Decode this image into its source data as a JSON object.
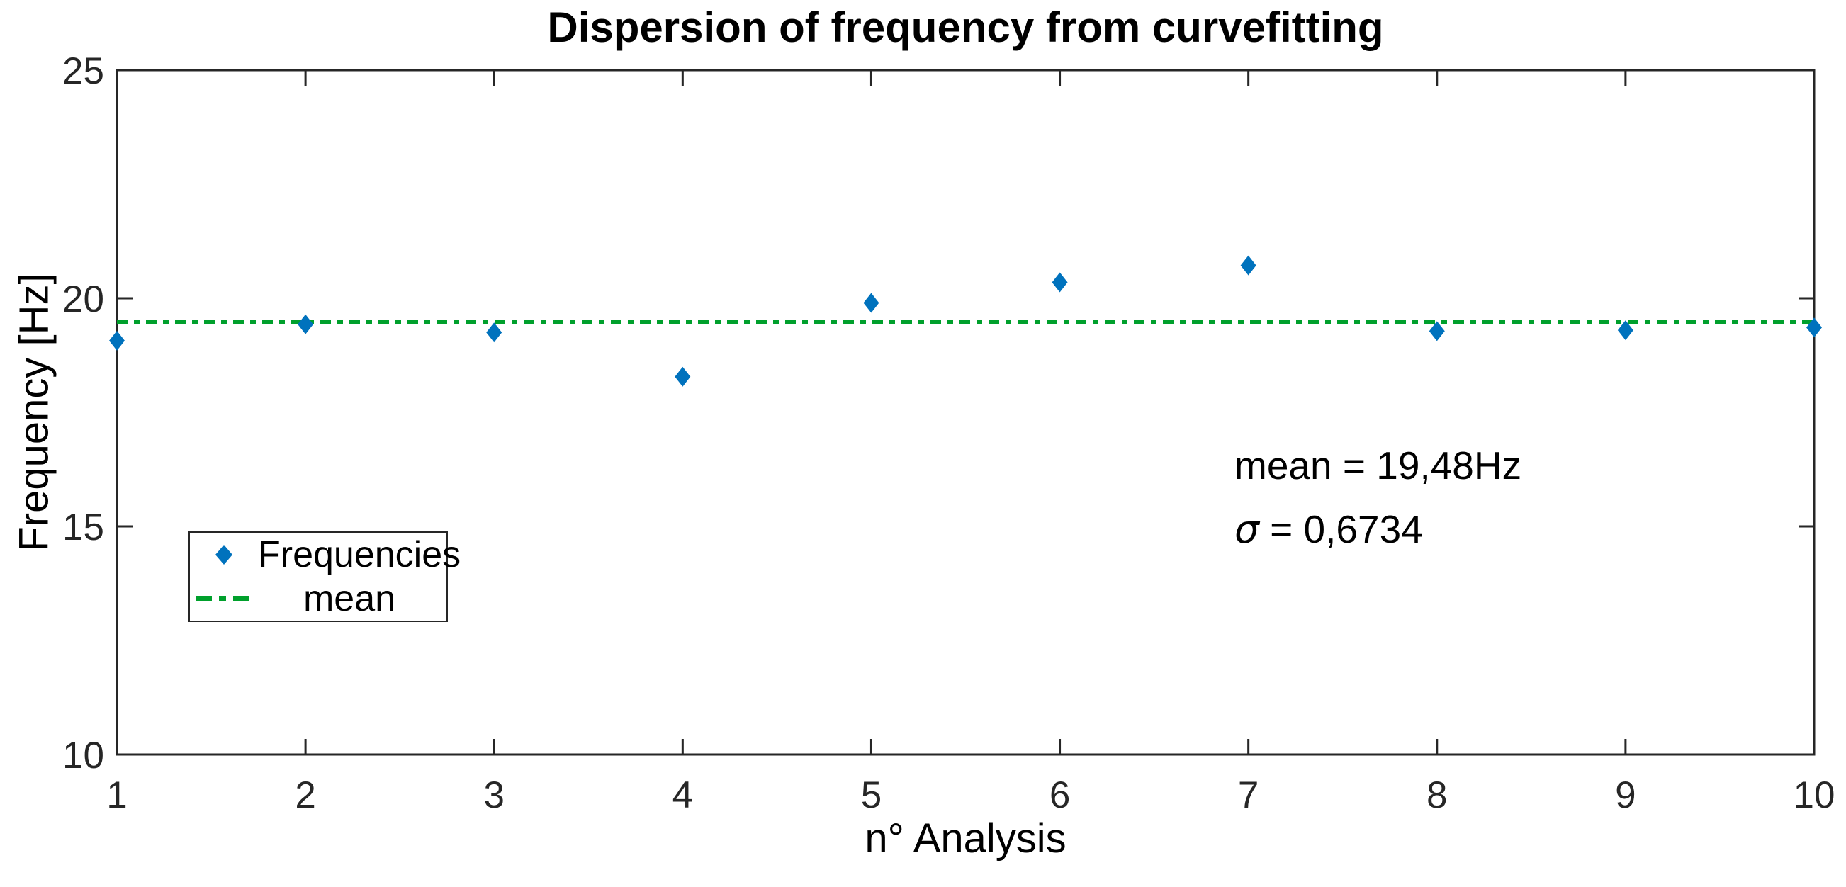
{
  "chart_data": {
    "type": "scatter",
    "title": "Dispersion of frequency from curvefitting",
    "xlabel": "n° Analysis",
    "ylabel": "Frequency [Hz]",
    "x": [
      1,
      2,
      3,
      4,
      5,
      6,
      7,
      8,
      9,
      10
    ],
    "series": [
      {
        "name": "Frequencies",
        "type": "scatter",
        "marker": "diamond",
        "color": "#0072BD",
        "values": [
          19.07,
          19.43,
          19.25,
          18.28,
          19.9,
          20.35,
          20.72,
          19.28,
          19.3,
          19.36
        ]
      },
      {
        "name": "mean",
        "type": "hline",
        "style": "dash-dot",
        "color": "#00A02C",
        "value": 19.48
      }
    ],
    "xlim": [
      1,
      10
    ],
    "ylim": [
      10,
      25
    ],
    "xticks": [
      "1",
      "2",
      "3",
      "4",
      "5",
      "6",
      "7",
      "8",
      "9",
      "10"
    ],
    "yticks": [
      "10",
      "15",
      "20",
      "25"
    ],
    "ytick_values": [
      10,
      15,
      20,
      25
    ],
    "grid": false,
    "legend_position": "lower-left",
    "axis_color": "#262626",
    "annotations": [
      {
        "text": "mean = 19,48Hz"
      },
      {
        "symbol": "σ",
        "rest": " = 0,6734"
      }
    ],
    "stats": {
      "mean": "19,48",
      "unit": "Hz",
      "sigma": "0,6734"
    }
  }
}
